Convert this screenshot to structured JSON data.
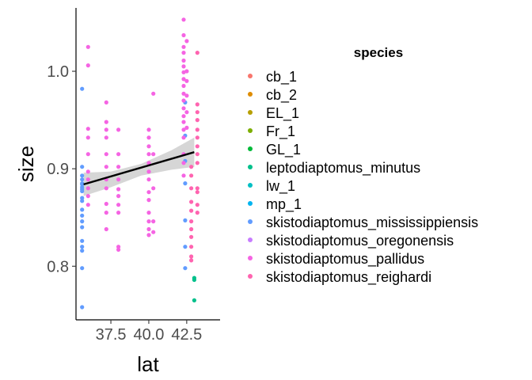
{
  "chart_data": {
    "type": "scatter",
    "xlabel": "lat",
    "ylabel": "size",
    "xlim": [
      35.2,
      44.7
    ],
    "ylim": [
      0.745,
      1.065
    ],
    "x_ticks": [
      {
        "value": 37.5,
        "label": "37.5"
      },
      {
        "value": 40.0,
        "label": "40.0"
      },
      {
        "value": 42.5,
        "label": "42.5"
      }
    ],
    "y_ticks": [
      {
        "value": 0.8,
        "label": "0.8"
      },
      {
        "value": 0.9,
        "label": "0.9"
      },
      {
        "value": 1.0,
        "label": "1.0"
      }
    ],
    "grid": false,
    "legend": {
      "title": "species",
      "placement": "right",
      "entries": [
        {
          "name": "cb_1",
          "color": "#F8766D"
        },
        {
          "name": "cb_2",
          "color": "#DE8C00"
        },
        {
          "name": "EL_1",
          "color": "#B79F00"
        },
        {
          "name": "Fr_1",
          "color": "#7CAE00"
        },
        {
          "name": "GL_1",
          "color": "#00BA38"
        },
        {
          "name": "leptodiaptomus_minutus",
          "color": "#00C08B"
        },
        {
          "name": "lw_1",
          "color": "#00BFC4"
        },
        {
          "name": "mp_1",
          "color": "#00B4F0"
        },
        {
          "name": "skistodiaptomus_mississippiensis",
          "color": "#619CFF"
        },
        {
          "name": "skistodiaptomus_oregonensis",
          "color": "#C77CFF"
        },
        {
          "name": "skistodiaptomus_pallidus",
          "color": "#F564E3"
        },
        {
          "name": "skistodiaptomus_reighardi",
          "color": "#FF64B0"
        }
      ]
    },
    "regression": {
      "x_start": 35.7,
      "y_start": 0.884,
      "x_end": 43.0,
      "y_end": 0.917,
      "ci_band": [
        {
          "x": 35.7,
          "lo": 0.872,
          "hi": 0.896
        },
        {
          "x": 37.5,
          "lo": 0.881,
          "hi": 0.897
        },
        {
          "x": 39.5,
          "lo": 0.893,
          "hi": 0.905
        },
        {
          "x": 41.5,
          "lo": 0.899,
          "hi": 0.919
        },
        {
          "x": 43.0,
          "lo": 0.902,
          "hi": 0.932
        }
      ]
    },
    "series": [
      {
        "name": "skistodiaptomus_mississippiensis",
        "color": "#619CFF",
        "points": [
          {
            "x": 35.6,
            "y": 0.982
          },
          {
            "x": 35.6,
            "y": 0.902
          },
          {
            "x": 35.6,
            "y": 0.893
          },
          {
            "x": 35.6,
            "y": 0.889
          },
          {
            "x": 35.6,
            "y": 0.885
          },
          {
            "x": 35.6,
            "y": 0.881
          },
          {
            "x": 35.6,
            "y": 0.877
          },
          {
            "x": 35.6,
            "y": 0.87
          },
          {
            "x": 35.6,
            "y": 0.858
          },
          {
            "x": 35.6,
            "y": 0.852
          },
          {
            "x": 35.6,
            "y": 0.846
          },
          {
            "x": 35.6,
            "y": 0.84
          },
          {
            "x": 35.6,
            "y": 0.826
          },
          {
            "x": 35.6,
            "y": 0.82
          },
          {
            "x": 35.6,
            "y": 0.816
          },
          {
            "x": 35.6,
            "y": 0.798
          },
          {
            "x": 35.6,
            "y": 0.758
          },
          {
            "x": 35.6,
            "y": 0.884
          },
          {
            "x": 35.6,
            "y": 0.879
          },
          {
            "x": 35.6,
            "y": 0.867
          },
          {
            "x": 42.4,
            "y": 0.968
          },
          {
            "x": 42.4,
            "y": 0.934
          },
          {
            "x": 42.4,
            "y": 0.908
          },
          {
            "x": 42.4,
            "y": 0.885
          },
          {
            "x": 42.4,
            "y": 0.847
          },
          {
            "x": 42.4,
            "y": 0.82
          },
          {
            "x": 42.4,
            "y": 0.798
          }
        ]
      },
      {
        "name": "leptodiaptomus_minutus",
        "color": "#00C08B",
        "points": [
          {
            "x": 43.0,
            "y": 0.788
          },
          {
            "x": 43.0,
            "y": 0.786
          },
          {
            "x": 43.0,
            "y": 0.765
          }
        ]
      },
      {
        "name": "skistodiaptomus_pallidus",
        "color": "#F564E3",
        "points": [
          {
            "x": 36.0,
            "y": 1.025
          },
          {
            "x": 36.0,
            "y": 1.006
          },
          {
            "x": 36.0,
            "y": 0.941
          },
          {
            "x": 36.0,
            "y": 0.932
          },
          {
            "x": 36.0,
            "y": 0.915
          },
          {
            "x": 36.0,
            "y": 0.897
          },
          {
            "x": 36.0,
            "y": 0.889
          },
          {
            "x": 36.0,
            "y": 0.88
          },
          {
            "x": 36.0,
            "y": 0.872
          },
          {
            "x": 36.0,
            "y": 0.863
          },
          {
            "x": 37.2,
            "y": 0.968
          },
          {
            "x": 37.2,
            "y": 0.948
          },
          {
            "x": 37.2,
            "y": 0.94
          },
          {
            "x": 37.2,
            "y": 0.932
          },
          {
            "x": 37.2,
            "y": 0.915
          },
          {
            "x": 37.2,
            "y": 0.902
          },
          {
            "x": 37.2,
            "y": 0.889
          },
          {
            "x": 37.2,
            "y": 0.88
          },
          {
            "x": 37.2,
            "y": 0.864
          },
          {
            "x": 37.2,
            "y": 0.855
          },
          {
            "x": 37.2,
            "y": 0.838
          },
          {
            "x": 38.0,
            "y": 0.94
          },
          {
            "x": 38.0,
            "y": 0.915
          },
          {
            "x": 38.0,
            "y": 0.902
          },
          {
            "x": 38.0,
            "y": 0.889
          },
          {
            "x": 38.0,
            "y": 0.879
          },
          {
            "x": 38.0,
            "y": 0.872
          },
          {
            "x": 38.0,
            "y": 0.863
          },
          {
            "x": 38.0,
            "y": 0.855
          },
          {
            "x": 38.0,
            "y": 0.82
          },
          {
            "x": 38.0,
            "y": 0.817
          },
          {
            "x": 40.0,
            "y": 0.94
          },
          {
            "x": 40.0,
            "y": 0.932
          },
          {
            "x": 40.0,
            "y": 0.923
          },
          {
            "x": 40.0,
            "y": 0.915
          },
          {
            "x": 40.0,
            "y": 0.906
          },
          {
            "x": 40.0,
            "y": 0.897
          },
          {
            "x": 40.0,
            "y": 0.889
          },
          {
            "x": 40.0,
            "y": 0.876
          },
          {
            "x": 40.0,
            "y": 0.868
          },
          {
            "x": 40.0,
            "y": 0.855
          },
          {
            "x": 40.0,
            "y": 0.846
          },
          {
            "x": 40.0,
            "y": 0.838
          },
          {
            "x": 40.0,
            "y": 0.832
          },
          {
            "x": 40.3,
            "y": 0.977
          },
          {
            "x": 40.3,
            "y": 0.915
          },
          {
            "x": 40.3,
            "y": 0.88
          },
          {
            "x": 40.3,
            "y": 0.846
          },
          {
            "x": 40.3,
            "y": 0.835
          },
          {
            "x": 42.3,
            "y": 1.053
          },
          {
            "x": 42.3,
            "y": 1.037
          },
          {
            "x": 42.3,
            "y": 1.025
          },
          {
            "x": 42.3,
            "y": 1.019
          },
          {
            "x": 42.3,
            "y": 1.011
          },
          {
            "x": 42.3,
            "y": 1.005
          },
          {
            "x": 42.3,
            "y": 0.999
          },
          {
            "x": 42.3,
            "y": 0.992
          },
          {
            "x": 42.3,
            "y": 0.985
          },
          {
            "x": 42.3,
            "y": 0.977
          },
          {
            "x": 42.3,
            "y": 0.97
          },
          {
            "x": 42.3,
            "y": 0.962
          },
          {
            "x": 42.3,
            "y": 0.954
          },
          {
            "x": 42.3,
            "y": 0.948
          },
          {
            "x": 42.3,
            "y": 0.94
          },
          {
            "x": 42.3,
            "y": 0.932
          },
          {
            "x": 42.3,
            "y": 0.915
          },
          {
            "x": 42.3,
            "y": 0.906
          },
          {
            "x": 42.3,
            "y": 0.893
          },
          {
            "x": 42.5,
            "y": 1.031
          },
          {
            "x": 42.5,
            "y": 1.0
          },
          {
            "x": 42.5,
            "y": 0.99
          },
          {
            "x": 42.5,
            "y": 0.975
          },
          {
            "x": 42.5,
            "y": 0.958
          },
          {
            "x": 42.5,
            "y": 0.942
          }
        ]
      },
      {
        "name": "skistodiaptomus_reighardi",
        "color": "#FF64B0",
        "points": [
          {
            "x": 42.8,
            "y": 0.902
          },
          {
            "x": 42.8,
            "y": 0.893
          },
          {
            "x": 42.8,
            "y": 0.88
          },
          {
            "x": 42.8,
            "y": 0.866
          },
          {
            "x": 42.8,
            "y": 0.857
          },
          {
            "x": 42.8,
            "y": 0.846
          },
          {
            "x": 42.8,
            "y": 0.838
          },
          {
            "x": 42.8,
            "y": 0.83
          },
          {
            "x": 42.8,
            "y": 0.82
          },
          {
            "x": 42.8,
            "y": 0.81
          },
          {
            "x": 42.8,
            "y": 0.806
          },
          {
            "x": 43.2,
            "y": 1.019
          },
          {
            "x": 43.2,
            "y": 0.966
          },
          {
            "x": 43.2,
            "y": 0.958
          },
          {
            "x": 43.2,
            "y": 0.95
          },
          {
            "x": 43.2,
            "y": 0.94
          },
          {
            "x": 43.2,
            "y": 0.932
          },
          {
            "x": 43.2,
            "y": 0.923
          },
          {
            "x": 43.2,
            "y": 0.915
          },
          {
            "x": 43.2,
            "y": 0.906
          },
          {
            "x": 43.2,
            "y": 0.88
          },
          {
            "x": 43.2,
            "y": 0.876
          },
          {
            "x": 43.2,
            "y": 0.863
          },
          {
            "x": 43.2,
            "y": 0.855
          }
        ]
      }
    ]
  }
}
